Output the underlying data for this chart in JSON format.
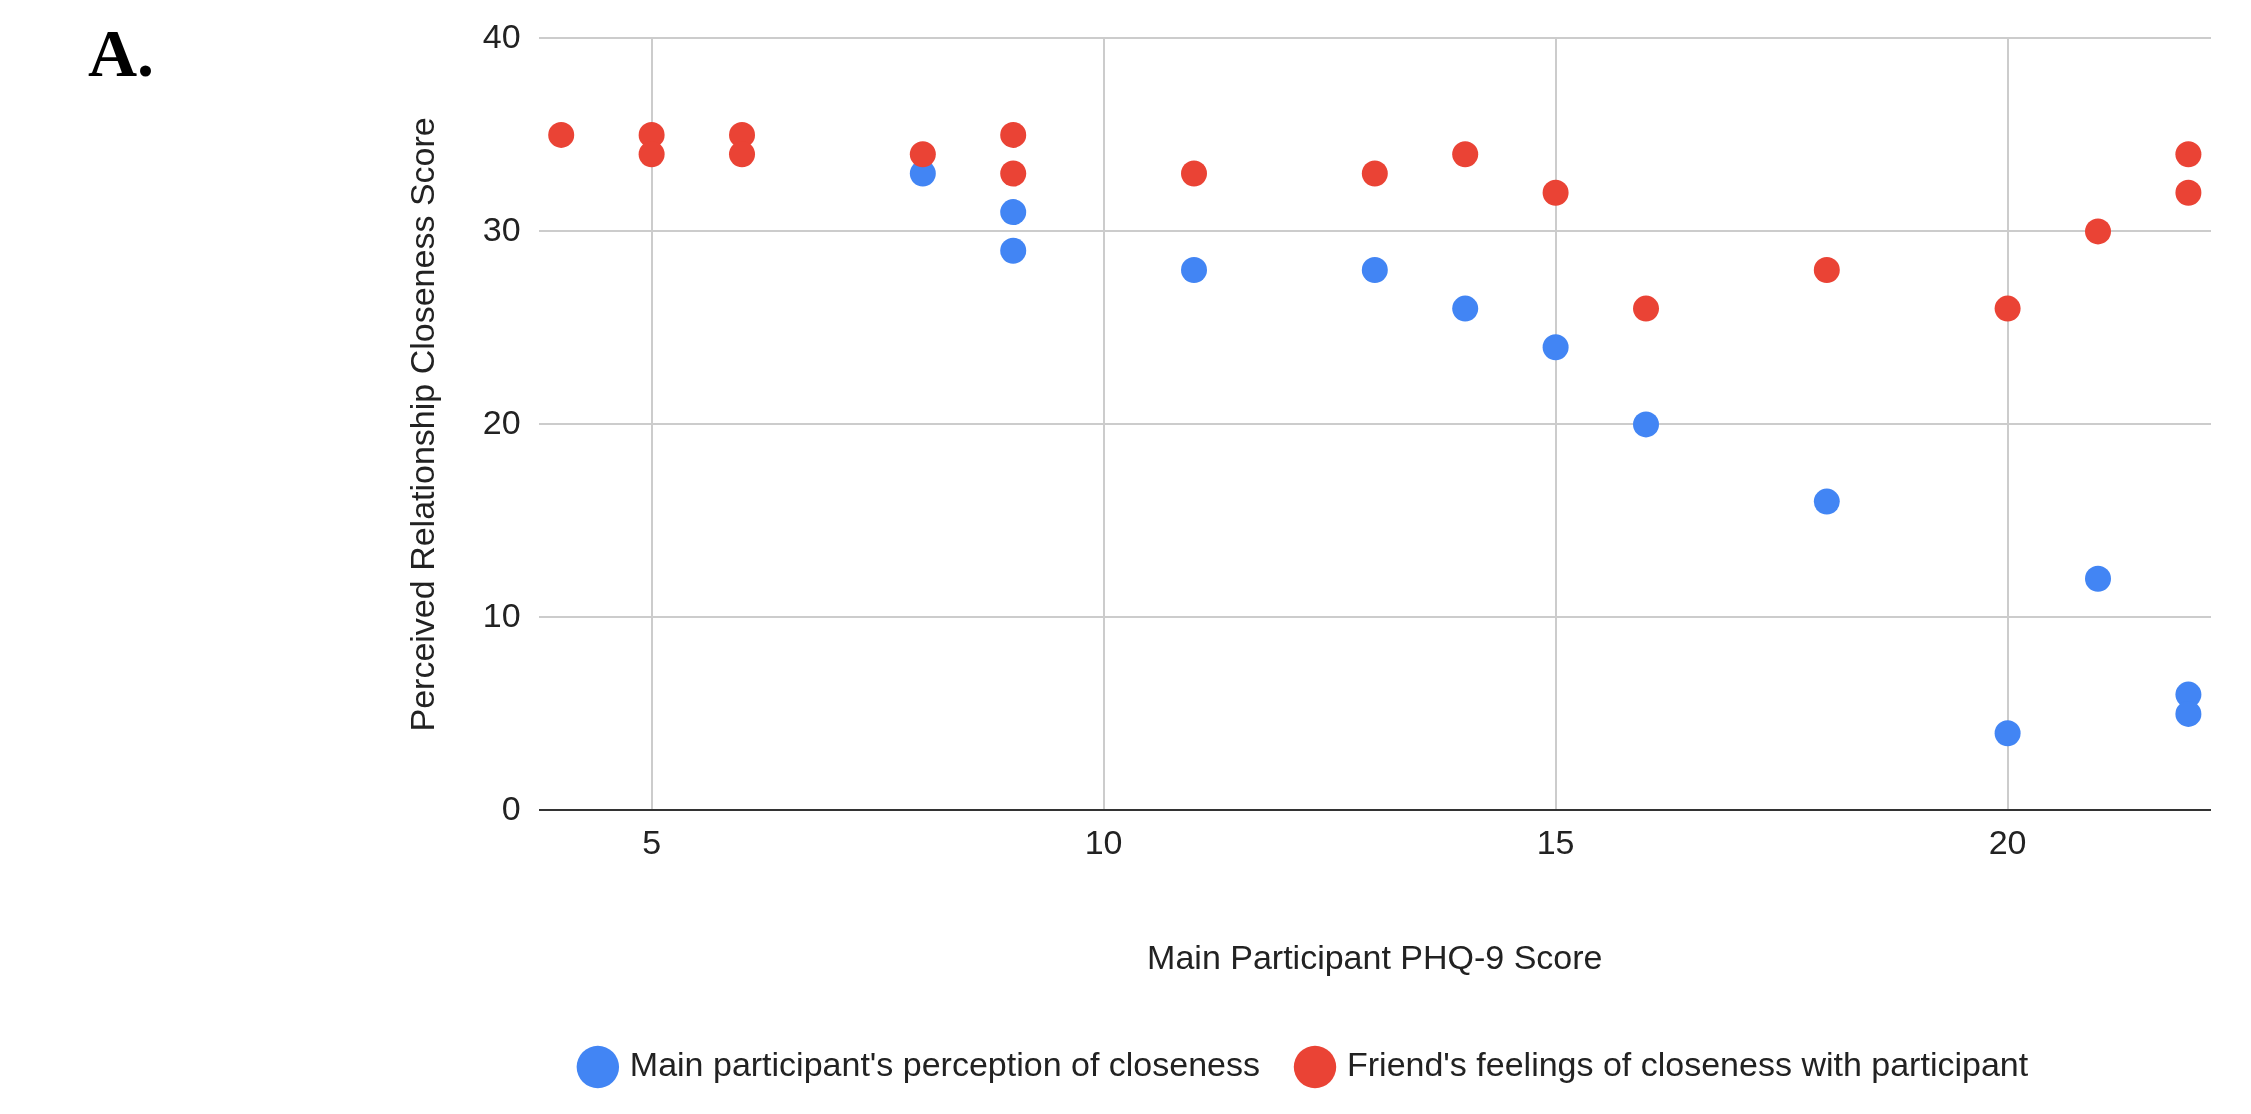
{
  "chart_data": {
    "type": "scatter",
    "xlabel": "Main Participant PHQ-9 Score",
    "ylabel": "Perceived Relationship Closeness Score",
    "annotations": [
      "A."
    ],
    "xlim": [
      3.75,
      22.25
    ],
    "xticks": [
      5,
      10,
      15,
      20
    ],
    "ylim": [
      0,
      40
    ],
    "yticks": [
      0,
      10,
      20,
      30,
      40
    ],
    "grid": true,
    "legend": "bottom",
    "marker": "circle",
    "series": [
      {
        "name": "Main participant's perception of closeness",
        "color": "#4285f4",
        "x": [
          8,
          9,
          9,
          11,
          13,
          14,
          15,
          16,
          18,
          20,
          21,
          22,
          22
        ],
        "values": [
          33,
          31,
          29,
          28,
          28,
          26,
          24,
          20,
          16,
          4,
          12,
          6,
          5
        ]
      },
      {
        "name": "Friend's feelings of closeness with participant",
        "color": "#ea4335",
        "x": [
          4,
          5,
          5,
          6,
          6,
          8,
          9,
          9,
          11,
          13,
          14,
          15,
          16,
          18,
          20,
          21,
          22,
          22
        ],
        "values": [
          35,
          35,
          34,
          35,
          34,
          34,
          35,
          33,
          33,
          33,
          34,
          32,
          26,
          28,
          26,
          30,
          34,
          32
        ]
      }
    ]
  }
}
